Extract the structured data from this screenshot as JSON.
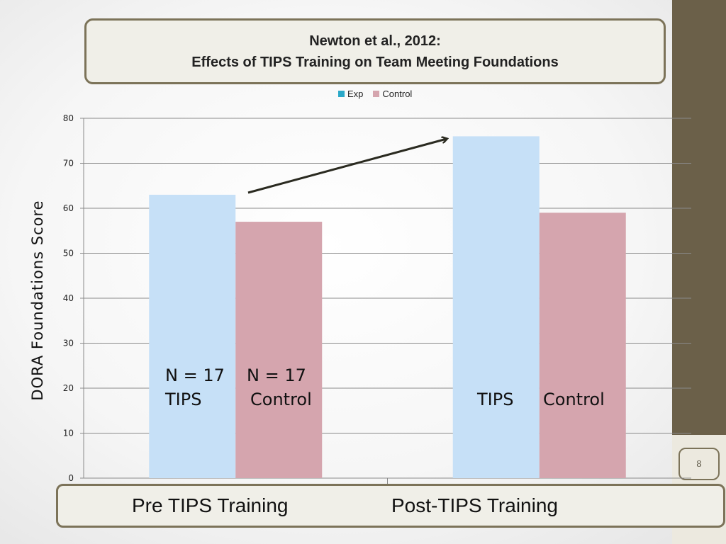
{
  "slide": {
    "title_line1": "Newton et al., 2012:",
    "title_line2": "Effects of TIPS Training on Team Meeting Foundations",
    "page_number": "8",
    "bottom_labels": [
      "Pre TIPS Training",
      "Post-TIPS Training"
    ],
    "annotations": {
      "pre_n_exp": "N = 17",
      "pre_n_ctrl": "N = 17",
      "pre_label_exp": "TIPS",
      "pre_label_ctrl": "Control",
      "post_label_exp": "TIPS",
      "post_label_ctrl": "Control"
    },
    "colors": {
      "band": "#6b6049",
      "border": "#7c7359"
    }
  },
  "chart_data": {
    "type": "bar",
    "categories": [
      "",
      ""
    ],
    "series": [
      {
        "name": "Exp",
        "color": "#c6e0f7",
        "values": [
          63,
          76
        ]
      },
      {
        "name": "Control",
        "color": "#d5a5ae",
        "values": [
          57,
          59
        ]
      }
    ],
    "legend_colors": [
      "#2aa8c8",
      "#d5a5ae"
    ],
    "ylabel": "DORA Foundations Score",
    "ylim": [
      0,
      80
    ],
    "yticks": [
      0,
      10,
      20,
      30,
      40,
      50,
      60,
      70,
      80
    ],
    "grid": true,
    "legend": "top-center",
    "annotation_arrow": "from Pre TIPS Exp bar to Post TIPS Exp bar"
  }
}
